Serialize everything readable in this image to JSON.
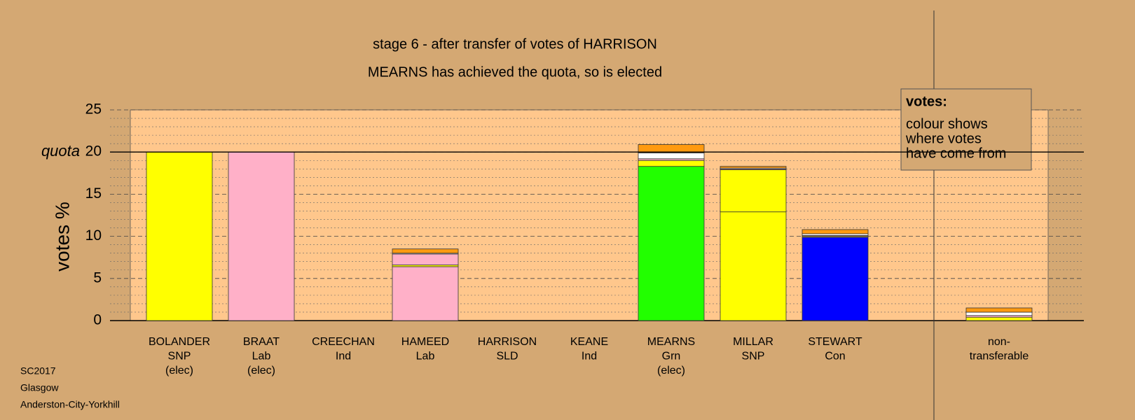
{
  "chart_data": {
    "type": "bar",
    "stacked": true,
    "title": "stage 6 - after transfer of votes of HARRISON",
    "subtitle": "MEARNS has achieved the quota, so is elected",
    "ylabel": "votes %",
    "categories": [
      [
        "BOLANDER",
        "SNP",
        "(elec)"
      ],
      [
        "BRAAT",
        "Lab",
        "(elec)"
      ],
      [
        "CREECHAN",
        "Ind"
      ],
      [
        "HAMEED",
        "Lab"
      ],
      [
        "HARRISON",
        "SLD"
      ],
      [
        "KEANE",
        "Ind"
      ],
      [
        "MEARNS",
        "Grn",
        "(elec)"
      ],
      [
        "MILLAR",
        "SNP"
      ],
      [
        "STEWART",
        "Con"
      ],
      [
        "non-",
        "transferable"
      ]
    ],
    "series": [
      {
        "color": "#ffff00",
        "values": [
          20,
          0,
          0,
          0,
          0,
          0,
          0,
          12.9,
          0,
          0
        ]
      },
      {
        "color": "#ffb0c8",
        "values": [
          0,
          20,
          0,
          6.4,
          0,
          0,
          0,
          0,
          0,
          0
        ]
      },
      {
        "color": "#22ff00",
        "values": [
          0,
          0,
          0,
          0,
          0,
          0,
          18.3,
          0,
          0,
          0
        ]
      },
      {
        "color": "#0000ff",
        "values": [
          0,
          0,
          0,
          0,
          0,
          0,
          0,
          0,
          9.9,
          0
        ]
      },
      {
        "color": "#ffff00",
        "values": [
          0,
          0,
          0,
          0.2,
          0,
          0,
          0.7,
          5.0,
          0.1,
          0.4
        ]
      },
      {
        "color": "#ffb0c8",
        "values": [
          0,
          0,
          0,
          1.3,
          0,
          0,
          0.2,
          0.1,
          0.1,
          0.2
        ]
      },
      {
        "color": "#ffffff",
        "values": [
          0,
          0,
          0,
          0.1,
          0,
          0,
          0.7,
          0.1,
          0.2,
          0.4
        ]
      },
      {
        "color": "#ff9a10",
        "values": [
          0,
          0,
          0,
          0.5,
          0,
          0,
          1.0,
          0.2,
          0.5,
          0.5
        ]
      }
    ],
    "ylim": [
      0,
      25
    ],
    "yticks": [
      0,
      5,
      10,
      15,
      20,
      25
    ],
    "grid": true,
    "quota": {
      "value": 20,
      "label": "quota"
    },
    "note": {
      "title": "votes:",
      "lines": [
        "colour shows",
        "where votes",
        "have come from"
      ]
    },
    "footer": [
      "SC2017",
      "Glasgow",
      "Anderston-City-Yorkhill"
    ]
  }
}
